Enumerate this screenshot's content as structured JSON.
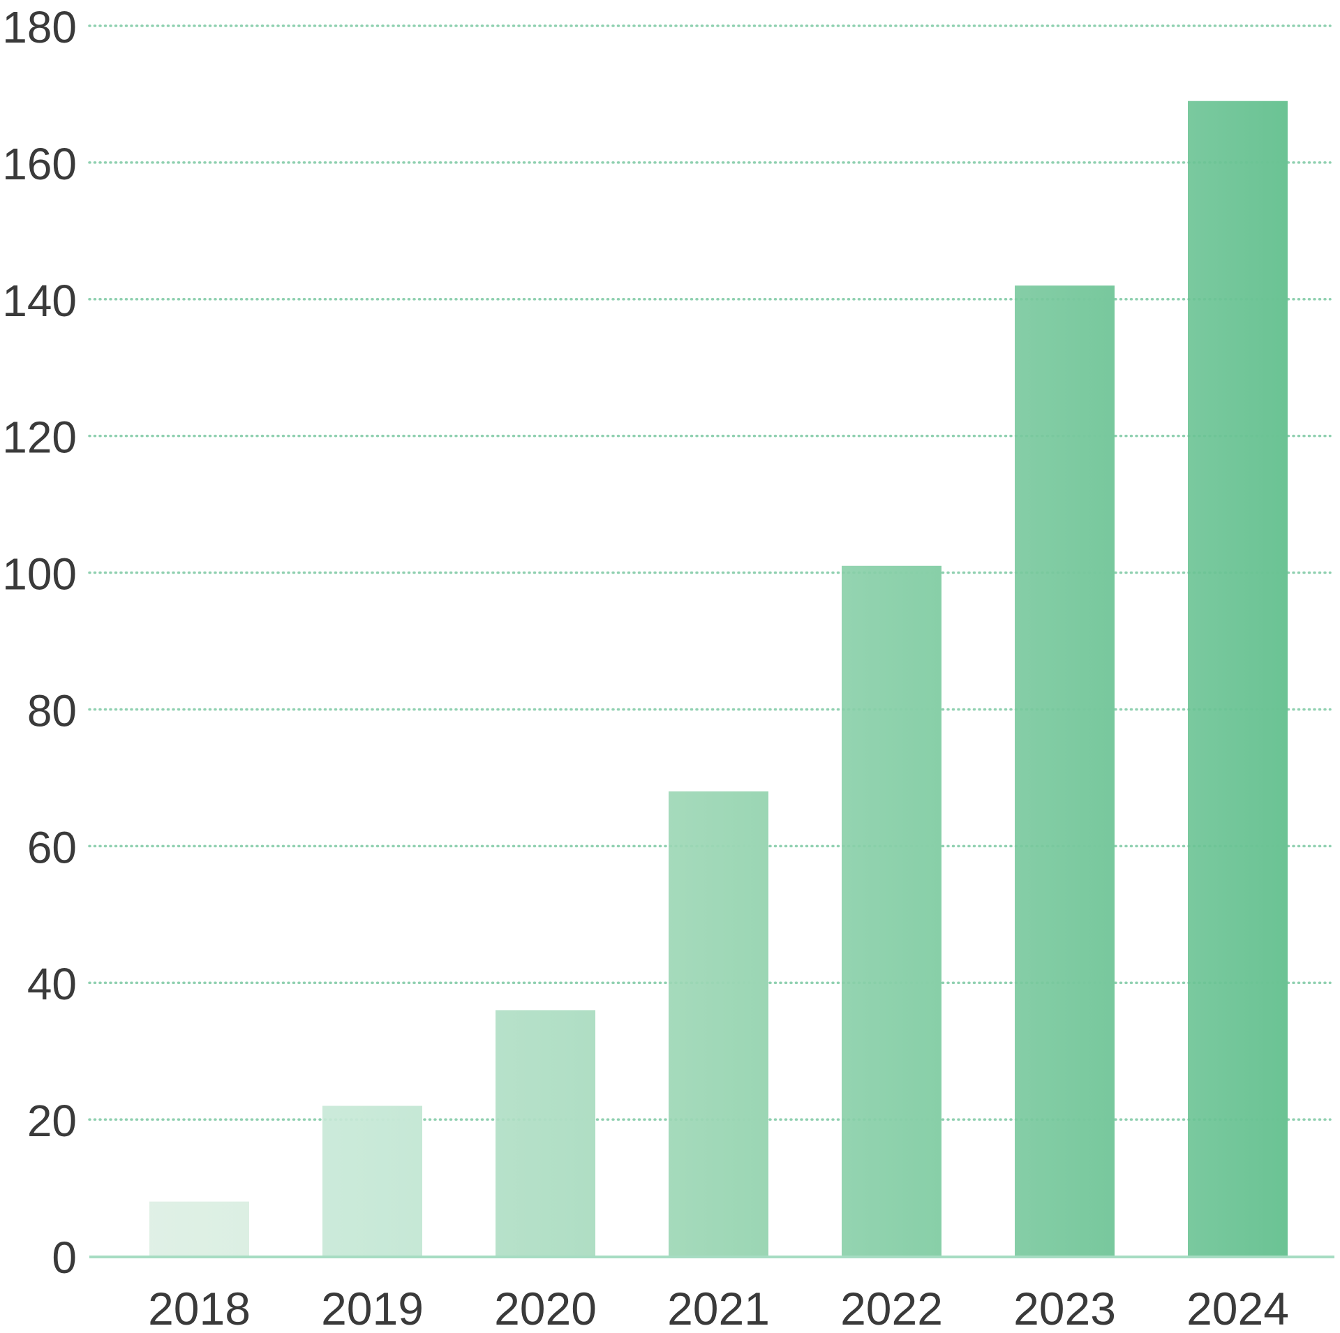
{
  "chart_data": {
    "type": "bar",
    "title": "",
    "xlabel": "",
    "ylabel": "",
    "categories": [
      "2018",
      "2019",
      "2020",
      "2021",
      "2022",
      "2023",
      "2024"
    ],
    "values": [
      8,
      22,
      36,
      68,
      101,
      142,
      169
    ],
    "ylim": [
      0,
      180
    ],
    "yticks": [
      0,
      20,
      40,
      60,
      80,
      100,
      120,
      140,
      160,
      180
    ],
    "grid": true,
    "legend": "none",
    "colors": [
      "#dcefe3",
      "#c6e8d6",
      "#afdec4",
      "#9bd6b4",
      "#88cfa8",
      "#78c89d",
      "#6bc394"
    ],
    "grid_color": "#8fd0b0",
    "axis_color": "#a6dcc2",
    "text_color": "#3a3a3a"
  }
}
